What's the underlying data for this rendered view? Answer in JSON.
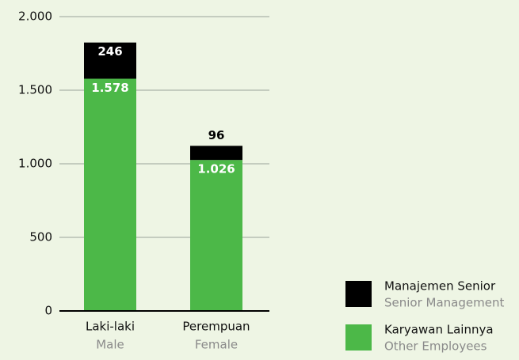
{
  "chart_data": {
    "type": "stacked_bar",
    "categories": [
      "Laki-laki",
      "Perempuan"
    ],
    "category_subtitles": [
      "Male",
      "Female"
    ],
    "series": [
      {
        "name": "Karyawan Lainnya",
        "subtitle": "Other Employees",
        "color": "#4cb848",
        "values": [
          1578,
          1026
        ],
        "value_labels": [
          "1.578",
          "1.026"
        ]
      },
      {
        "name": "Manajemen Senior",
        "subtitle": "Senior Management",
        "color": "#000000",
        "values": [
          246,
          96
        ]
      }
    ],
    "ylim": [
      0,
      2000
    ],
    "yticks": [
      0,
      500,
      {
        "value": 1000,
        "label": "1.000"
      },
      {
        "value": 1500,
        "label": "1.500"
      },
      {
        "value": 2000,
        "label": "2.000"
      }
    ],
    "grid": true
  }
}
